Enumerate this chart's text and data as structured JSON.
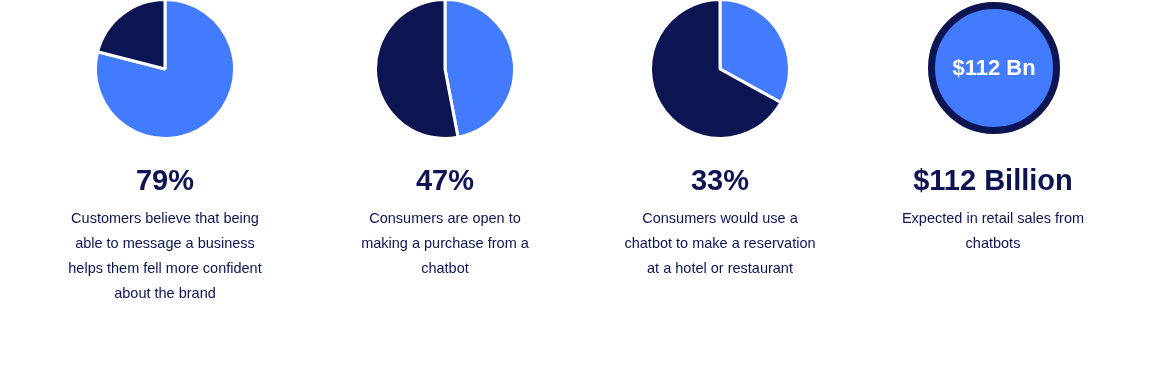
{
  "chart_data": [
    {
      "type": "pie",
      "title": "79%",
      "subtitle": "Customers believe that being able to message a business helps them fell more confident about the brand",
      "categories": [
        null,
        null
      ],
      "values": [
        79,
        21
      ],
      "colors": [
        "#437bff",
        "#0d1452"
      ]
    },
    {
      "type": "pie",
      "title": "47%",
      "subtitle": "Consumers are open to making a purchase from a chatbot",
      "categories": [
        null,
        null
      ],
      "values": [
        47,
        53
      ],
      "colors": [
        "#437bff",
        "#0d1452"
      ]
    },
    {
      "type": "pie",
      "title": "33%",
      "subtitle": "Consumers would use a chatbot to make a reservation at a hotel or restaurant",
      "categories": [
        null,
        null
      ],
      "values": [
        33,
        67
      ],
      "colors": [
        "#437bff",
        "#0d1452"
      ]
    },
    {
      "type": "other",
      "title": "$112 Billion",
      "subtitle": "Expected in retail sales from chatbots",
      "annotations": [
        "$112 Bn"
      ]
    }
  ]
}
